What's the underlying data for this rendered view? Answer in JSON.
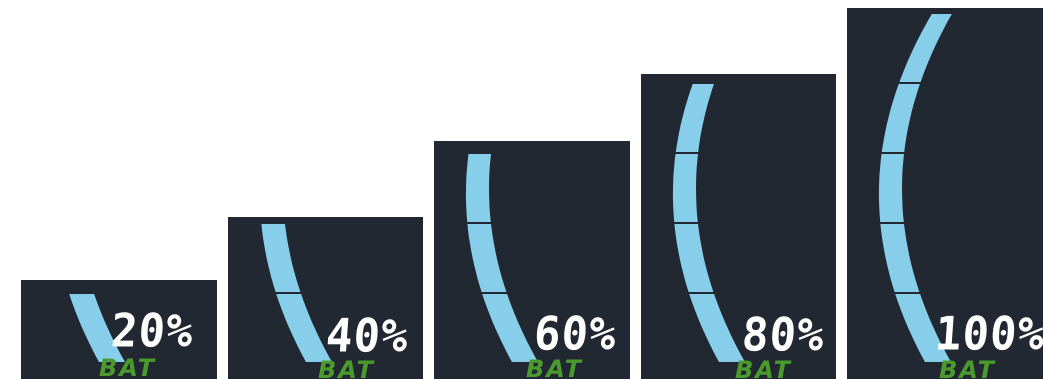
{
  "colors": {
    "panel_bg": "#222831",
    "segment_fill": "#87ceeb",
    "percent_text": "#ffffff",
    "bat_label": "#4a9a2e"
  },
  "indicators": [
    {
      "percent_label": "20%",
      "level": 0.2,
      "segments_lit": 1,
      "bat_label": "BAT"
    },
    {
      "percent_label": "40%",
      "level": 0.4,
      "segments_lit": 2,
      "bat_label": "BAT"
    },
    {
      "percent_label": "60%",
      "level": 0.6,
      "segments_lit": 3,
      "bat_label": "BAT"
    },
    {
      "percent_label": "80%",
      "level": 0.8,
      "segments_lit": 4,
      "bat_label": "BAT"
    },
    {
      "percent_label": "100%",
      "level": 1.0,
      "segments_lit": 5,
      "bat_label": "BAT"
    }
  ]
}
